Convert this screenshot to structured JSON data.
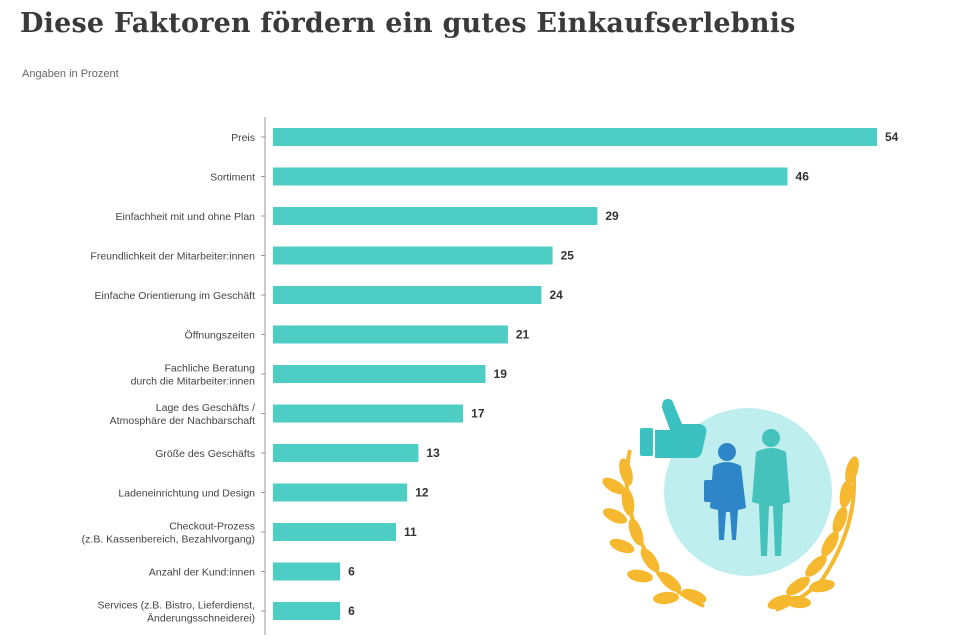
{
  "title": "Diese Faktoren fördern ein gutes Einkaufserlebnis",
  "subtitle": "Angaben in Prozent",
  "colors": {
    "bar": "#4ecdc4",
    "axis": "#999999",
    "circle": "#bfeeee",
    "laurel": "#f5b82e",
    "thumb": "#3cc1c1",
    "person1": "#2e86c8",
    "person2": "#45c2bb"
  },
  "chart_data": {
    "type": "bar",
    "orientation": "horizontal",
    "title": "Diese Faktoren fördern ein gutes Einkaufserlebnis",
    "subtitle": "Angaben in Prozent",
    "xlim": [
      0,
      54
    ],
    "categories": [
      [
        "Preis"
      ],
      [
        "Sortiment"
      ],
      [
        "Einfachheit mit und ohne Plan"
      ],
      [
        "Freundlichkeit der Mitarbeiter:innen"
      ],
      [
        "Einfache Orientierung im Geschäft"
      ],
      [
        "Öffnungszeiten"
      ],
      [
        "Fachliche Beratung",
        "durch die Mitarbeiter:innen"
      ],
      [
        "Lage des Geschäfts /",
        "Atmosphäre der Nachbarschaft"
      ],
      [
        "Größe des Geschäfts"
      ],
      [
        "Ladeneinrichtung und Design"
      ],
      [
        "Checkout-Prozess",
        "(z.B. Kassenbereich, Bezahlvorgang)"
      ],
      [
        "Anzahl der Kund:innen"
      ],
      [
        "Services (z.B. Bistro, Lieferdienst,",
        "Änderungsschneiderei)"
      ]
    ],
    "values": [
      54,
      46,
      29,
      25,
      24,
      21,
      19,
      17,
      13,
      12,
      11,
      6,
      6
    ]
  }
}
